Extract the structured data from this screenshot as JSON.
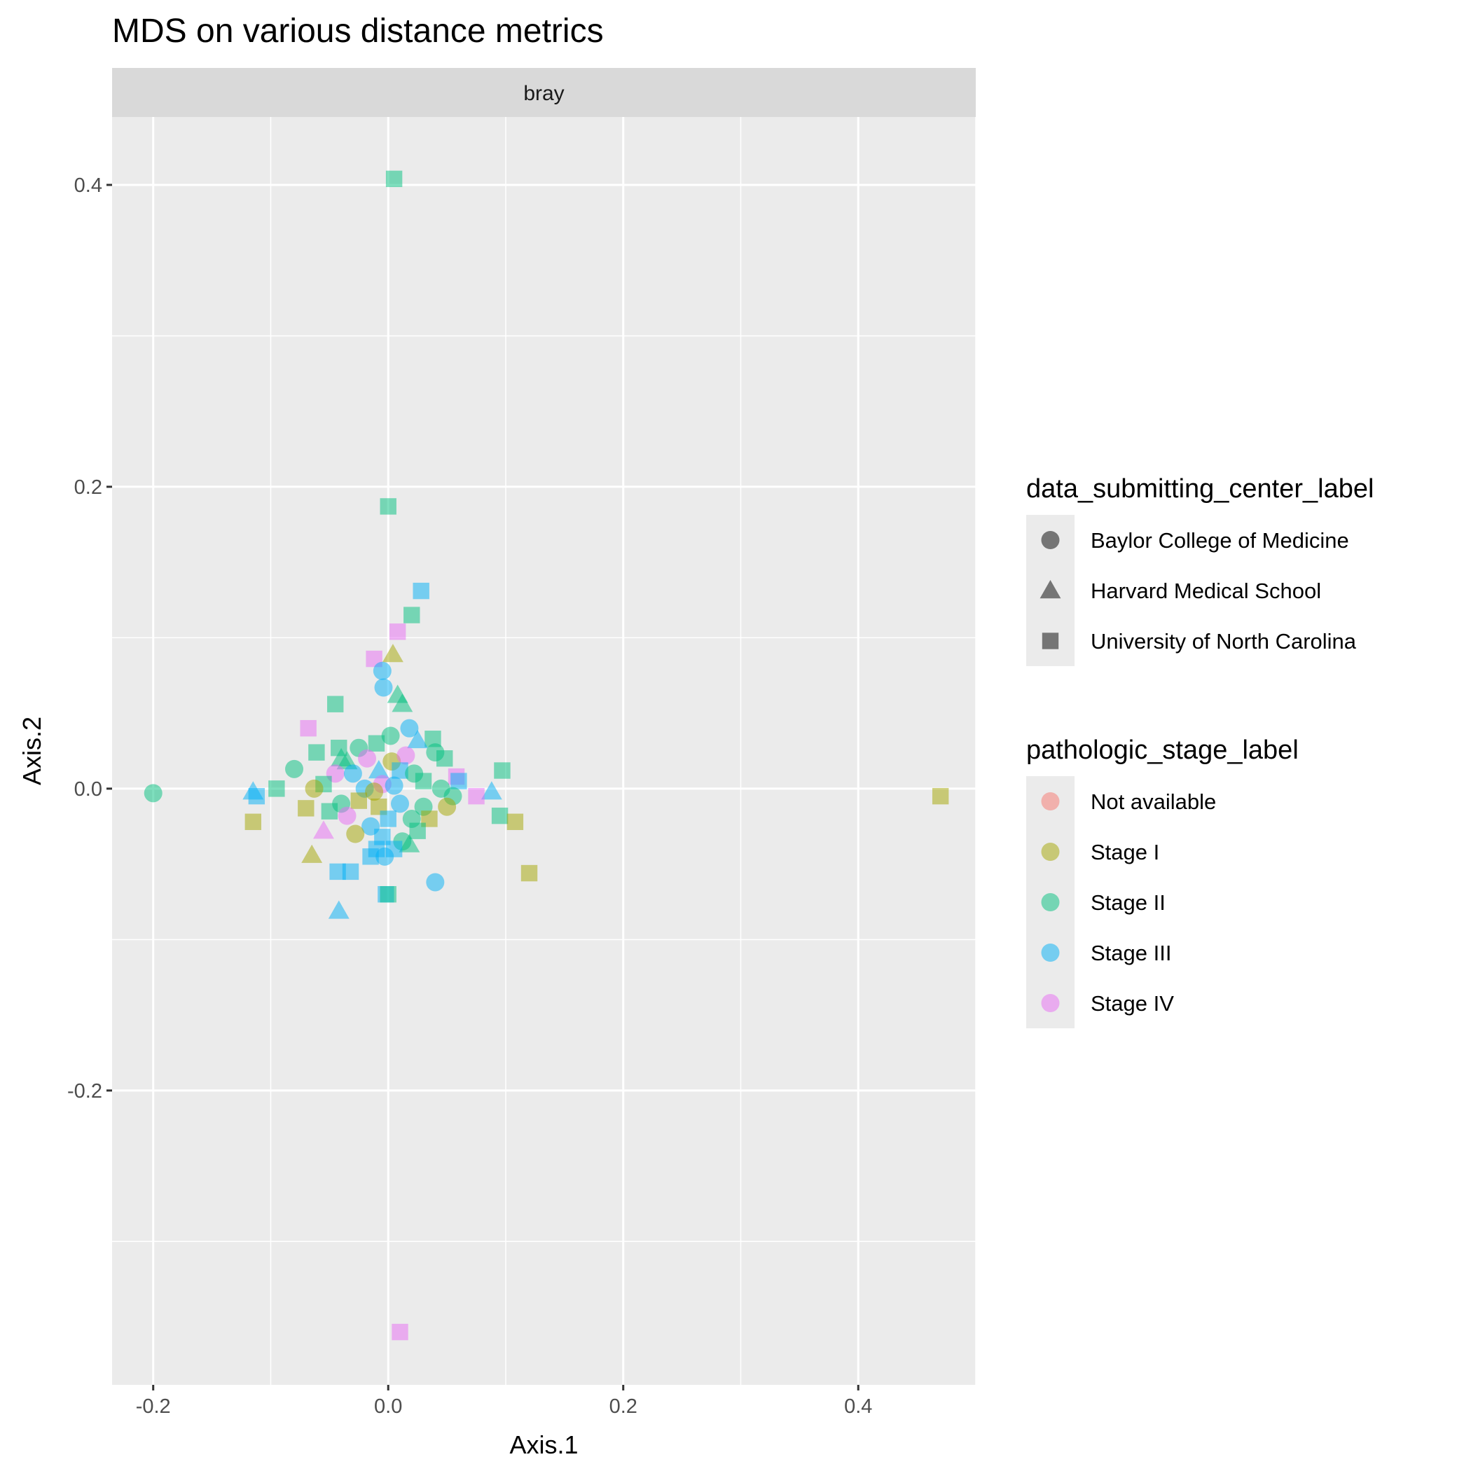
{
  "chart_data": {
    "type": "scatter",
    "title": "MDS on various distance metrics",
    "facet_label": "bray",
    "xlabel": "Axis.1",
    "ylabel": "Axis.2",
    "xlim": [
      -0.235,
      0.5
    ],
    "ylim": [
      -0.395,
      0.445
    ],
    "x_ticks": [
      -0.2,
      0.0,
      0.2,
      0.4
    ],
    "x_tick_labels": [
      "-0.2",
      "0.0",
      "0.2",
      "0.4"
    ],
    "y_ticks": [
      -0.2,
      0.0,
      0.2,
      0.4
    ],
    "y_tick_labels": [
      "-0.2",
      "0.0",
      "0.2",
      "0.4"
    ],
    "grid": true,
    "legend_position": "right",
    "legends": [
      {
        "title": "data_submitting_center_label",
        "entries": [
          {
            "label": "Baylor College of Medicine",
            "shape": "circle"
          },
          {
            "label": "Harvard Medical School",
            "shape": "triangle"
          },
          {
            "label": "University of North Carolina",
            "shape": "square"
          }
        ]
      },
      {
        "title": "pathologic_stage_label",
        "entries": [
          {
            "label": "Not available",
            "color": "#F8766D"
          },
          {
            "label": "Stage I",
            "color": "#A3A500"
          },
          {
            "label": "Stage II",
            "color": "#00BF7D"
          },
          {
            "label": "Stage III",
            "color": "#00B0F6"
          },
          {
            "label": "Stage IV",
            "color": "#E76BF3"
          }
        ]
      }
    ],
    "points": [
      {
        "x": 0.005,
        "y": 0.404,
        "shape": "square",
        "stage": "Stage II"
      },
      {
        "x": 0.0,
        "y": 0.187,
        "shape": "square",
        "stage": "Stage II"
      },
      {
        "x": 0.028,
        "y": 0.131,
        "shape": "square",
        "stage": "Stage III"
      },
      {
        "x": 0.02,
        "y": 0.115,
        "shape": "square",
        "stage": "Stage II"
      },
      {
        "x": 0.008,
        "y": 0.104,
        "shape": "square",
        "stage": "Stage IV"
      },
      {
        "x": 0.004,
        "y": 0.089,
        "shape": "triangle",
        "stage": "Stage I"
      },
      {
        "x": -0.012,
        "y": 0.086,
        "shape": "square",
        "stage": "Stage IV"
      },
      {
        "x": -0.005,
        "y": 0.078,
        "shape": "circle",
        "stage": "Stage III"
      },
      {
        "x": -0.004,
        "y": 0.067,
        "shape": "circle",
        "stage": "Stage III"
      },
      {
        "x": 0.008,
        "y": 0.062,
        "shape": "triangle",
        "stage": "Stage II"
      },
      {
        "x": 0.012,
        "y": 0.056,
        "shape": "triangle",
        "stage": "Stage II"
      },
      {
        "x": -0.045,
        "y": 0.056,
        "shape": "square",
        "stage": "Stage II"
      },
      {
        "x": 0.018,
        "y": 0.04,
        "shape": "circle",
        "stage": "Stage III"
      },
      {
        "x": -0.068,
        "y": 0.04,
        "shape": "square",
        "stage": "Stage IV"
      },
      {
        "x": 0.038,
        "y": 0.033,
        "shape": "square",
        "stage": "Stage II"
      },
      {
        "x": 0.002,
        "y": 0.035,
        "shape": "circle",
        "stage": "Stage II"
      },
      {
        "x": -0.01,
        "y": 0.03,
        "shape": "square",
        "stage": "Stage II"
      },
      {
        "x": 0.025,
        "y": 0.032,
        "shape": "triangle",
        "stage": "Stage III"
      },
      {
        "x": -0.025,
        "y": 0.027,
        "shape": "circle",
        "stage": "Stage II"
      },
      {
        "x": -0.042,
        "y": 0.027,
        "shape": "square",
        "stage": "Stage II"
      },
      {
        "x": -0.061,
        "y": 0.024,
        "shape": "square",
        "stage": "Stage II"
      },
      {
        "x": 0.04,
        "y": 0.024,
        "shape": "circle",
        "stage": "Stage II"
      },
      {
        "x": -0.04,
        "y": 0.02,
        "shape": "triangle",
        "stage": "Stage II"
      },
      {
        "x": -0.035,
        "y": 0.018,
        "shape": "triangle",
        "stage": "Stage II"
      },
      {
        "x": -0.018,
        "y": 0.02,
        "shape": "circle",
        "stage": "Stage IV"
      },
      {
        "x": 0.003,
        "y": 0.018,
        "shape": "circle",
        "stage": "Stage I"
      },
      {
        "x": 0.015,
        "y": 0.022,
        "shape": "circle",
        "stage": "Stage IV"
      },
      {
        "x": 0.048,
        "y": 0.02,
        "shape": "square",
        "stage": "Stage II"
      },
      {
        "x": -0.08,
        "y": 0.013,
        "shape": "circle",
        "stage": "Stage II"
      },
      {
        "x": 0.097,
        "y": 0.012,
        "shape": "square",
        "stage": "Stage II"
      },
      {
        "x": -0.045,
        "y": 0.01,
        "shape": "circle",
        "stage": "Stage IV"
      },
      {
        "x": -0.03,
        "y": 0.01,
        "shape": "circle",
        "stage": "Stage III"
      },
      {
        "x": -0.008,
        "y": 0.012,
        "shape": "triangle",
        "stage": "Stage III"
      },
      {
        "x": 0.01,
        "y": 0.012,
        "shape": "square",
        "stage": "Stage III"
      },
      {
        "x": 0.022,
        "y": 0.01,
        "shape": "circle",
        "stage": "Stage II"
      },
      {
        "x": 0.058,
        "y": 0.008,
        "shape": "square",
        "stage": "Stage IV"
      },
      {
        "x": 0.03,
        "y": 0.005,
        "shape": "square",
        "stage": "Stage II"
      },
      {
        "x": -0.055,
        "y": 0.003,
        "shape": "square",
        "stage": "Stage II"
      },
      {
        "x": -0.02,
        "y": 0.0,
        "shape": "circle",
        "stage": "Stage III"
      },
      {
        "x": -0.005,
        "y": 0.003,
        "shape": "circle",
        "stage": "Stage IV"
      },
      {
        "x": -0.012,
        "y": -0.002,
        "shape": "circle",
        "stage": "Stage I"
      },
      {
        "x": 0.005,
        "y": 0.002,
        "shape": "circle",
        "stage": "Stage III"
      },
      {
        "x": 0.045,
        "y": 0.0,
        "shape": "circle",
        "stage": "Stage II"
      },
      {
        "x": -0.063,
        "y": 0.0,
        "shape": "circle",
        "stage": "Stage I"
      },
      {
        "x": 0.06,
        "y": 0.005,
        "shape": "square",
        "stage": "Stage III"
      },
      {
        "x": -0.2,
        "y": -0.003,
        "shape": "circle",
        "stage": "Stage II"
      },
      {
        "x": -0.115,
        "y": -0.002,
        "shape": "triangle",
        "stage": "Stage III"
      },
      {
        "x": -0.112,
        "y": -0.005,
        "shape": "square",
        "stage": "Stage III"
      },
      {
        "x": -0.095,
        "y": 0.0,
        "shape": "square",
        "stage": "Stage II"
      },
      {
        "x": 0.088,
        "y": -0.002,
        "shape": "triangle",
        "stage": "Stage III"
      },
      {
        "x": 0.055,
        "y": -0.005,
        "shape": "circle",
        "stage": "Stage II"
      },
      {
        "x": 0.075,
        "y": -0.005,
        "shape": "square",
        "stage": "Stage IV"
      },
      {
        "x": 0.47,
        "y": -0.005,
        "shape": "square",
        "stage": "Stage I"
      },
      {
        "x": -0.04,
        "y": -0.01,
        "shape": "circle",
        "stage": "Stage II"
      },
      {
        "x": -0.025,
        "y": -0.008,
        "shape": "square",
        "stage": "Stage I"
      },
      {
        "x": -0.008,
        "y": -0.012,
        "shape": "square",
        "stage": "Stage I"
      },
      {
        "x": 0.01,
        "y": -0.01,
        "shape": "circle",
        "stage": "Stage III"
      },
      {
        "x": 0.03,
        "y": -0.012,
        "shape": "circle",
        "stage": "Stage II"
      },
      {
        "x": 0.05,
        "y": -0.012,
        "shape": "circle",
        "stage": "Stage I"
      },
      {
        "x": -0.07,
        "y": -0.013,
        "shape": "square",
        "stage": "Stage I"
      },
      {
        "x": -0.05,
        "y": -0.015,
        "shape": "square",
        "stage": "Stage II"
      },
      {
        "x": -0.035,
        "y": -0.018,
        "shape": "circle",
        "stage": "Stage IV"
      },
      {
        "x": -0.115,
        "y": -0.022,
        "shape": "square",
        "stage": "Stage I"
      },
      {
        "x": 0.095,
        "y": -0.018,
        "shape": "square",
        "stage": "Stage II"
      },
      {
        "x": 0.108,
        "y": -0.022,
        "shape": "square",
        "stage": "Stage I"
      },
      {
        "x": 0.0,
        "y": -0.02,
        "shape": "square",
        "stage": "Stage III"
      },
      {
        "x": 0.02,
        "y": -0.02,
        "shape": "circle",
        "stage": "Stage II"
      },
      {
        "x": 0.035,
        "y": -0.02,
        "shape": "square",
        "stage": "Stage I"
      },
      {
        "x": -0.015,
        "y": -0.025,
        "shape": "circle",
        "stage": "Stage III"
      },
      {
        "x": 0.025,
        "y": -0.028,
        "shape": "square",
        "stage": "Stage II"
      },
      {
        "x": -0.055,
        "y": -0.028,
        "shape": "triangle",
        "stage": "Stage IV"
      },
      {
        "x": -0.028,
        "y": -0.03,
        "shape": "circle",
        "stage": "Stage I"
      },
      {
        "x": -0.005,
        "y": -0.032,
        "shape": "square",
        "stage": "Stage III"
      },
      {
        "x": 0.012,
        "y": -0.035,
        "shape": "circle",
        "stage": "Stage II"
      },
      {
        "x": 0.018,
        "y": -0.037,
        "shape": "triangle",
        "stage": "Stage II"
      },
      {
        "x": -0.01,
        "y": -0.04,
        "shape": "square",
        "stage": "Stage III"
      },
      {
        "x": 0.005,
        "y": -0.04,
        "shape": "square",
        "stage": "Stage III"
      },
      {
        "x": -0.065,
        "y": -0.044,
        "shape": "triangle",
        "stage": "Stage I"
      },
      {
        "x": -0.015,
        "y": -0.045,
        "shape": "square",
        "stage": "Stage III"
      },
      {
        "x": -0.003,
        "y": -0.045,
        "shape": "circle",
        "stage": "Stage III"
      },
      {
        "x": -0.043,
        "y": -0.055,
        "shape": "square",
        "stage": "Stage III"
      },
      {
        "x": -0.032,
        "y": -0.055,
        "shape": "square",
        "stage": "Stage III"
      },
      {
        "x": 0.12,
        "y": -0.056,
        "shape": "square",
        "stage": "Stage I"
      },
      {
        "x": 0.04,
        "y": -0.062,
        "shape": "circle",
        "stage": "Stage III"
      },
      {
        "x": -0.002,
        "y": -0.07,
        "shape": "square",
        "stage": "Stage III"
      },
      {
        "x": 0.0,
        "y": -0.07,
        "shape": "square",
        "stage": "Stage II"
      },
      {
        "x": -0.042,
        "y": -0.081,
        "shape": "triangle",
        "stage": "Stage III"
      },
      {
        "x": 0.01,
        "y": -0.36,
        "shape": "square",
        "stage": "Stage IV"
      }
    ]
  }
}
